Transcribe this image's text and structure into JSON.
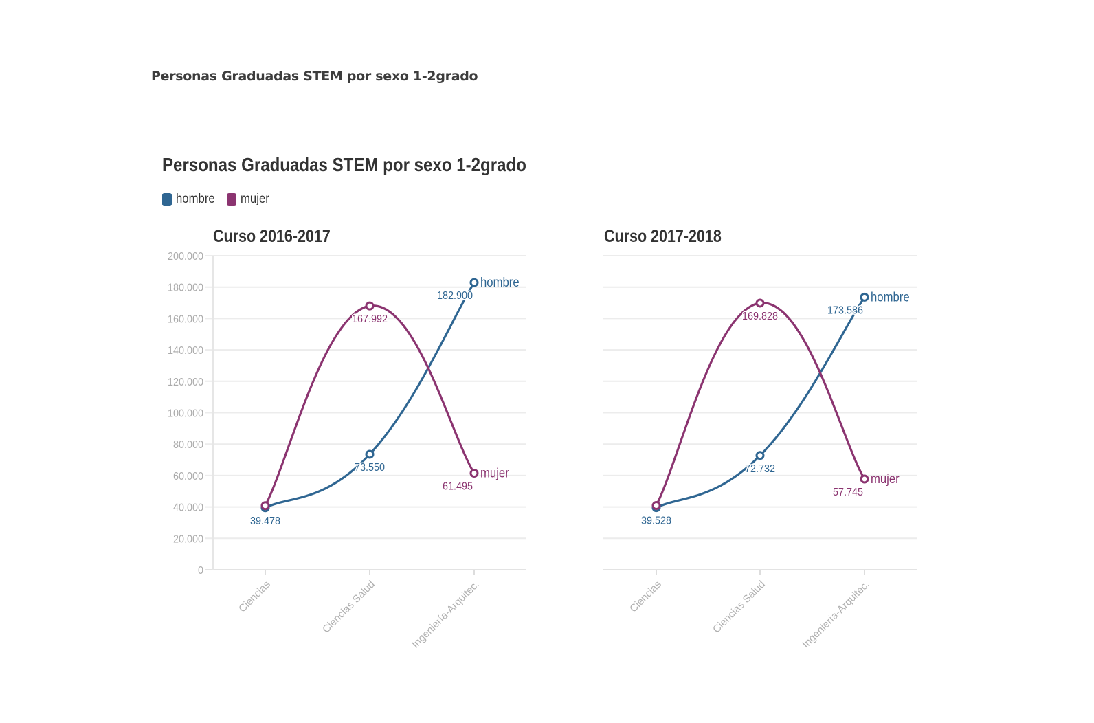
{
  "page": {
    "title": "Personas Graduadas STEM por sexo 1-2grado"
  },
  "figure": {
    "title": "Personas Graduadas STEM por sexo 1-2grado"
  },
  "legend": [
    {
      "label": "hombre",
      "color": "#2f6692"
    },
    {
      "label": "mujer",
      "color": "#8b3470"
    }
  ],
  "chart_data": [
    {
      "type": "line",
      "title": "Curso 2016-2017",
      "categories": [
        "Ciencias",
        "Ciencias Salud",
        "Ingeniería-Arquitec."
      ],
      "ylim": [
        0,
        200000
      ],
      "yticks": [
        0,
        20000,
        40000,
        60000,
        80000,
        100000,
        120000,
        140000,
        160000,
        180000,
        200000
      ],
      "ytick_labels": [
        "0",
        "20.000",
        "40.000",
        "60.000",
        "80.000",
        "100.000",
        "120.000",
        "140.000",
        "160.000",
        "180.000",
        "200.000"
      ],
      "grid": true,
      "series": [
        {
          "name": "hombre",
          "color": "#2f6692",
          "values": [
            39478,
            73550,
            182900
          ],
          "labels": [
            "39.478",
            "73.550",
            "182.900"
          ],
          "end_label": "hombre"
        },
        {
          "name": "mujer",
          "color": "#8b3470",
          "values": [
            40800,
            167992,
            61495
          ],
          "labels": [
            "",
            "167.992",
            "61.495"
          ],
          "end_label": "mujer"
        }
      ]
    },
    {
      "type": "line",
      "title": "Curso 2017-2018",
      "categories": [
        "Ciencias",
        "Ciencias Salud",
        "Ingeniería-Arquitec."
      ],
      "ylim": [
        0,
        200000
      ],
      "yticks": [
        0,
        20000,
        40000,
        60000,
        80000,
        100000,
        120000,
        140000,
        160000,
        180000,
        200000
      ],
      "ytick_labels": [],
      "grid": true,
      "series": [
        {
          "name": "hombre",
          "color": "#2f6692",
          "values": [
            39528,
            72732,
            173586
          ],
          "labels": [
            "39.528",
            "72.732",
            "173.586"
          ],
          "end_label": "hombre"
        },
        {
          "name": "mujer",
          "color": "#8b3470",
          "values": [
            40900,
            169828,
            57745
          ],
          "labels": [
            "",
            "169.828",
            "57.745"
          ],
          "end_label": "mujer"
        }
      ]
    }
  ]
}
